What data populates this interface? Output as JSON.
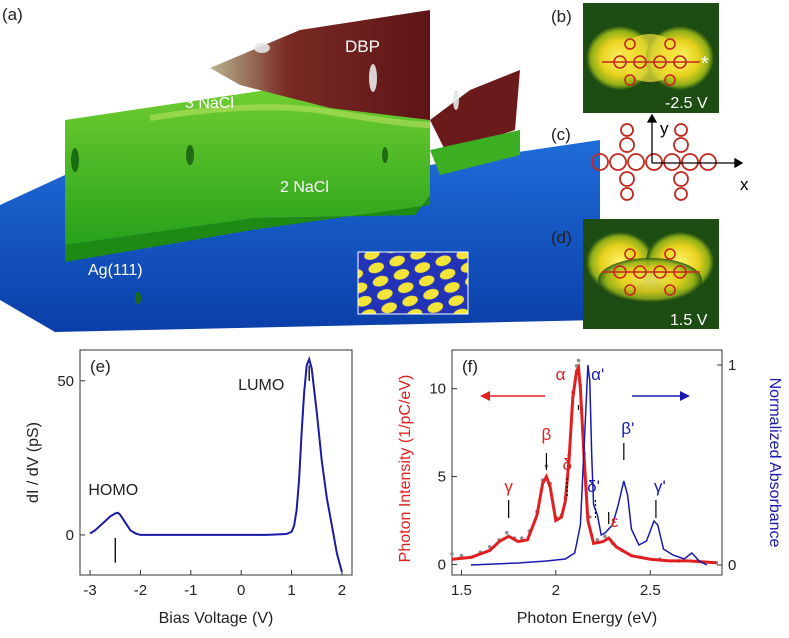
{
  "panels": {
    "a": {
      "label": "(a)",
      "regions": [
        "DBP",
        "3 NaCl",
        "2 NaCl",
        "Ag(111)"
      ]
    },
    "b": {
      "label": "(b)",
      "voltage": "-2.5 V",
      "mark": "*"
    },
    "c": {
      "label": "(c)",
      "axis_x": "x",
      "axis_y": "y"
    },
    "d": {
      "label": "(d)",
      "voltage": "1.5 V"
    }
  },
  "chart_data": [
    {
      "panel": "(e)",
      "type": "line",
      "xlabel": "Bias Voltage (V)",
      "ylabel": "dI / dV (pS)",
      "xlim": [
        -3.2,
        2.2
      ],
      "ylim": [
        -13,
        60
      ],
      "xticks": [
        -3,
        -2,
        -1,
        0,
        1,
        2
      ],
      "yticks": [
        0,
        50
      ],
      "color": "#1a1aa8",
      "series": [
        {
          "name": "dI/dV",
          "x": [
            -3.0,
            -2.9,
            -2.8,
            -2.7,
            -2.6,
            -2.5,
            -2.45,
            -2.4,
            -2.3,
            -2.2,
            -2.1,
            -2.0,
            -1.5,
            -1.0,
            -0.5,
            0.0,
            0.5,
            0.9,
            1.0,
            1.05,
            1.1,
            1.15,
            1.2,
            1.25,
            1.3,
            1.35,
            1.4,
            1.5,
            1.6,
            1.7,
            1.8,
            1.9,
            2.0
          ],
          "y": [
            0.5,
            1.5,
            3,
            4.5,
            6,
            7,
            7.2,
            6.5,
            4,
            1.5,
            0.5,
            0,
            0,
            0,
            0,
            0,
            0,
            0.3,
            1,
            3,
            8,
            18,
            33,
            46,
            55,
            57,
            54,
            40,
            24,
            12,
            3,
            -6,
            -12
          ]
        }
      ],
      "annotations": [
        {
          "text": "HOMO",
          "x": -2.5
        },
        {
          "text": "LUMO",
          "x": 1.35
        }
      ]
    },
    {
      "panel": "(f)",
      "type": "line",
      "xlabel": "Photon Energy (eV)",
      "ylabel_left": "Photon Intensity (1/pC/eV)",
      "ylabel_right": "Normalized Absorbance",
      "xlim": [
        1.45,
        2.88
      ],
      "ylim_left": [
        -0.6,
        12.2
      ],
      "ylim_right": [
        -0.05,
        1.075
      ],
      "xticks": [
        1.5,
        2.0,
        2.5
      ],
      "yticks_left": [
        0,
        5,
        10
      ],
      "yticks_right": [
        0,
        1
      ],
      "series": [
        {
          "name": "Photon intensity (fit)",
          "axis": "left",
          "color": "#e02020",
          "x": [
            1.45,
            1.55,
            1.65,
            1.7,
            1.75,
            1.8,
            1.85,
            1.9,
            1.93,
            1.95,
            1.97,
            2.0,
            2.03,
            2.05,
            2.07,
            2.09,
            2.11,
            2.12,
            2.13,
            2.15,
            2.17,
            2.2,
            2.25,
            2.28,
            2.32,
            2.4,
            2.5,
            2.6,
            2.7,
            2.85
          ],
          "y": [
            0.3,
            0.4,
            0.8,
            1.3,
            1.6,
            1.3,
            1.4,
            2.8,
            4.6,
            5.0,
            4.4,
            2.5,
            2.7,
            3.6,
            6.0,
            9.5,
            11.0,
            11.2,
            10.0,
            6.0,
            2.5,
            1.2,
            1.3,
            1.5,
            1.0,
            0.5,
            0.3,
            0.2,
            0.2,
            0.1
          ]
        },
        {
          "name": "Photon intensity (data)",
          "axis": "left",
          "color": "#8c8c8c",
          "x": [
            1.45,
            1.5,
            1.55,
            1.6,
            1.65,
            1.7,
            1.74,
            1.78,
            1.82,
            1.86,
            1.9,
            1.93,
            1.95,
            1.97,
            2.0,
            2.03,
            2.05,
            2.07,
            2.09,
            2.11,
            2.12,
            2.13,
            2.15,
            2.18,
            2.22,
            2.26,
            2.3,
            2.35,
            2.45,
            2.55,
            2.65,
            2.75,
            2.85
          ],
          "y": [
            0.6,
            0.5,
            0.4,
            0.7,
            1.0,
            1.4,
            1.8,
            1.5,
            1.5,
            1.9,
            3.0,
            4.8,
            5.6,
            4.6,
            2.7,
            2.8,
            3.8,
            6.2,
            9.8,
            11.3,
            11.6,
            10.2,
            6.3,
            2.7,
            1.4,
            1.6,
            1.2,
            0.8,
            0.4,
            0.3,
            0.2,
            0.2,
            0.1
          ]
        },
        {
          "name": "Normalized absorbance",
          "axis": "right",
          "color": "#1a1ab0",
          "x": [
            1.55,
            1.8,
            1.95,
            2.05,
            2.1,
            2.13,
            2.15,
            2.17,
            2.18,
            2.19,
            2.2,
            2.22,
            2.24,
            2.26,
            2.3,
            2.33,
            2.36,
            2.38,
            2.4,
            2.44,
            2.48,
            2.52,
            2.54,
            2.57,
            2.62,
            2.68,
            2.72,
            2.76,
            2.8
          ],
          "y": [
            0,
            0.01,
            0.02,
            0.03,
            0.06,
            0.2,
            0.6,
            1.0,
            0.92,
            0.55,
            0.3,
            0.25,
            0.15,
            0.16,
            0.2,
            0.3,
            0.42,
            0.35,
            0.18,
            0.1,
            0.12,
            0.22,
            0.2,
            0.08,
            0.05,
            0.03,
            0.06,
            0.02,
            0.0
          ]
        }
      ],
      "annotations": [
        {
          "text": "α",
          "x": 2.12,
          "color": "#e02020"
        },
        {
          "text": "β",
          "x": 1.95,
          "color": "#e02020"
        },
        {
          "text": "γ",
          "x": 1.75,
          "color": "#e02020"
        },
        {
          "text": "δ",
          "x": 2.06,
          "color": "#e02020"
        },
        {
          "text": "ε",
          "x": 2.28,
          "color": "#e02020"
        },
        {
          "text": "α'",
          "x": 2.19,
          "color": "#1a1ab0"
        },
        {
          "text": "β'",
          "x": 2.36,
          "color": "#1a1ab0"
        },
        {
          "text": "γ'",
          "x": 2.53,
          "color": "#1a1ab0"
        },
        {
          "text": "δ'",
          "x": 2.21,
          "color": "#1a1ab0"
        }
      ]
    }
  ]
}
